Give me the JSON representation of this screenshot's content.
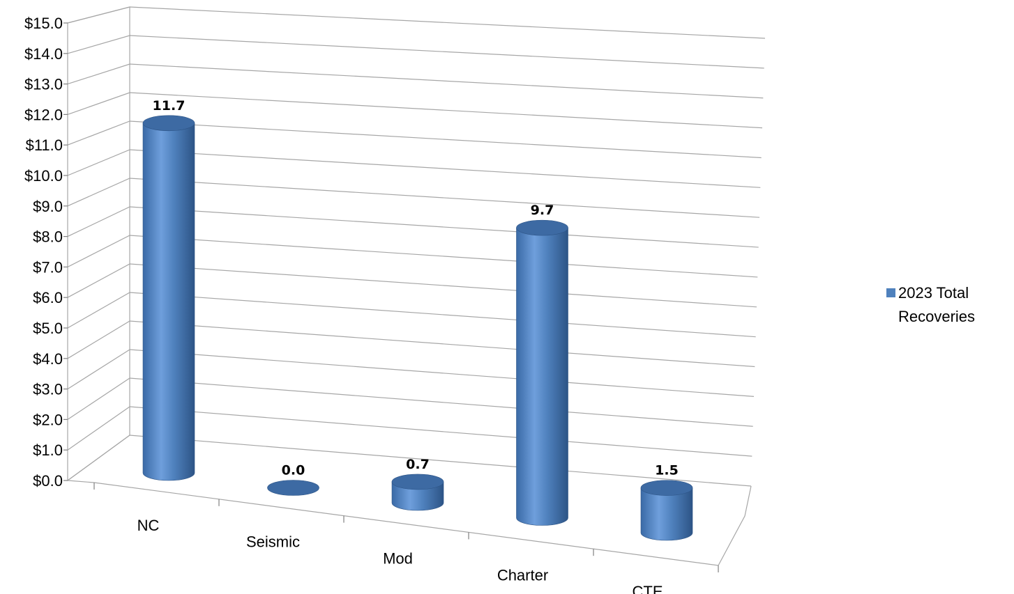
{
  "chart_data": {
    "type": "bar",
    "style": "3d-cylinder",
    "categories": [
      "NC",
      "Seismic",
      "Mod",
      "Charter",
      "CTE"
    ],
    "series": [
      {
        "name": "2023 Total Recoveries",
        "values": [
          11.7,
          0.0,
          0.7,
          9.7,
          1.5
        ],
        "color": "#4F81BD"
      }
    ],
    "data_labels": [
      "11.7",
      "0.0",
      "0.7",
      "9.7",
      "1.5"
    ],
    "y_ticks": [
      "$0.0",
      "$1.0",
      "$2.0",
      "$3.0",
      "$4.0",
      "$5.0",
      "$6.0",
      "$7.0",
      "$8.0",
      "$9.0",
      "$10.0",
      "$11.0",
      "$12.0",
      "$13.0",
      "$14.0",
      "$15.0"
    ],
    "ylim": [
      0,
      15
    ],
    "grid": true,
    "legend_position": "right",
    "legend_lines": [
      "2023 Total",
      "Recoveries"
    ],
    "title": "",
    "xlabel": "",
    "ylabel": ""
  }
}
